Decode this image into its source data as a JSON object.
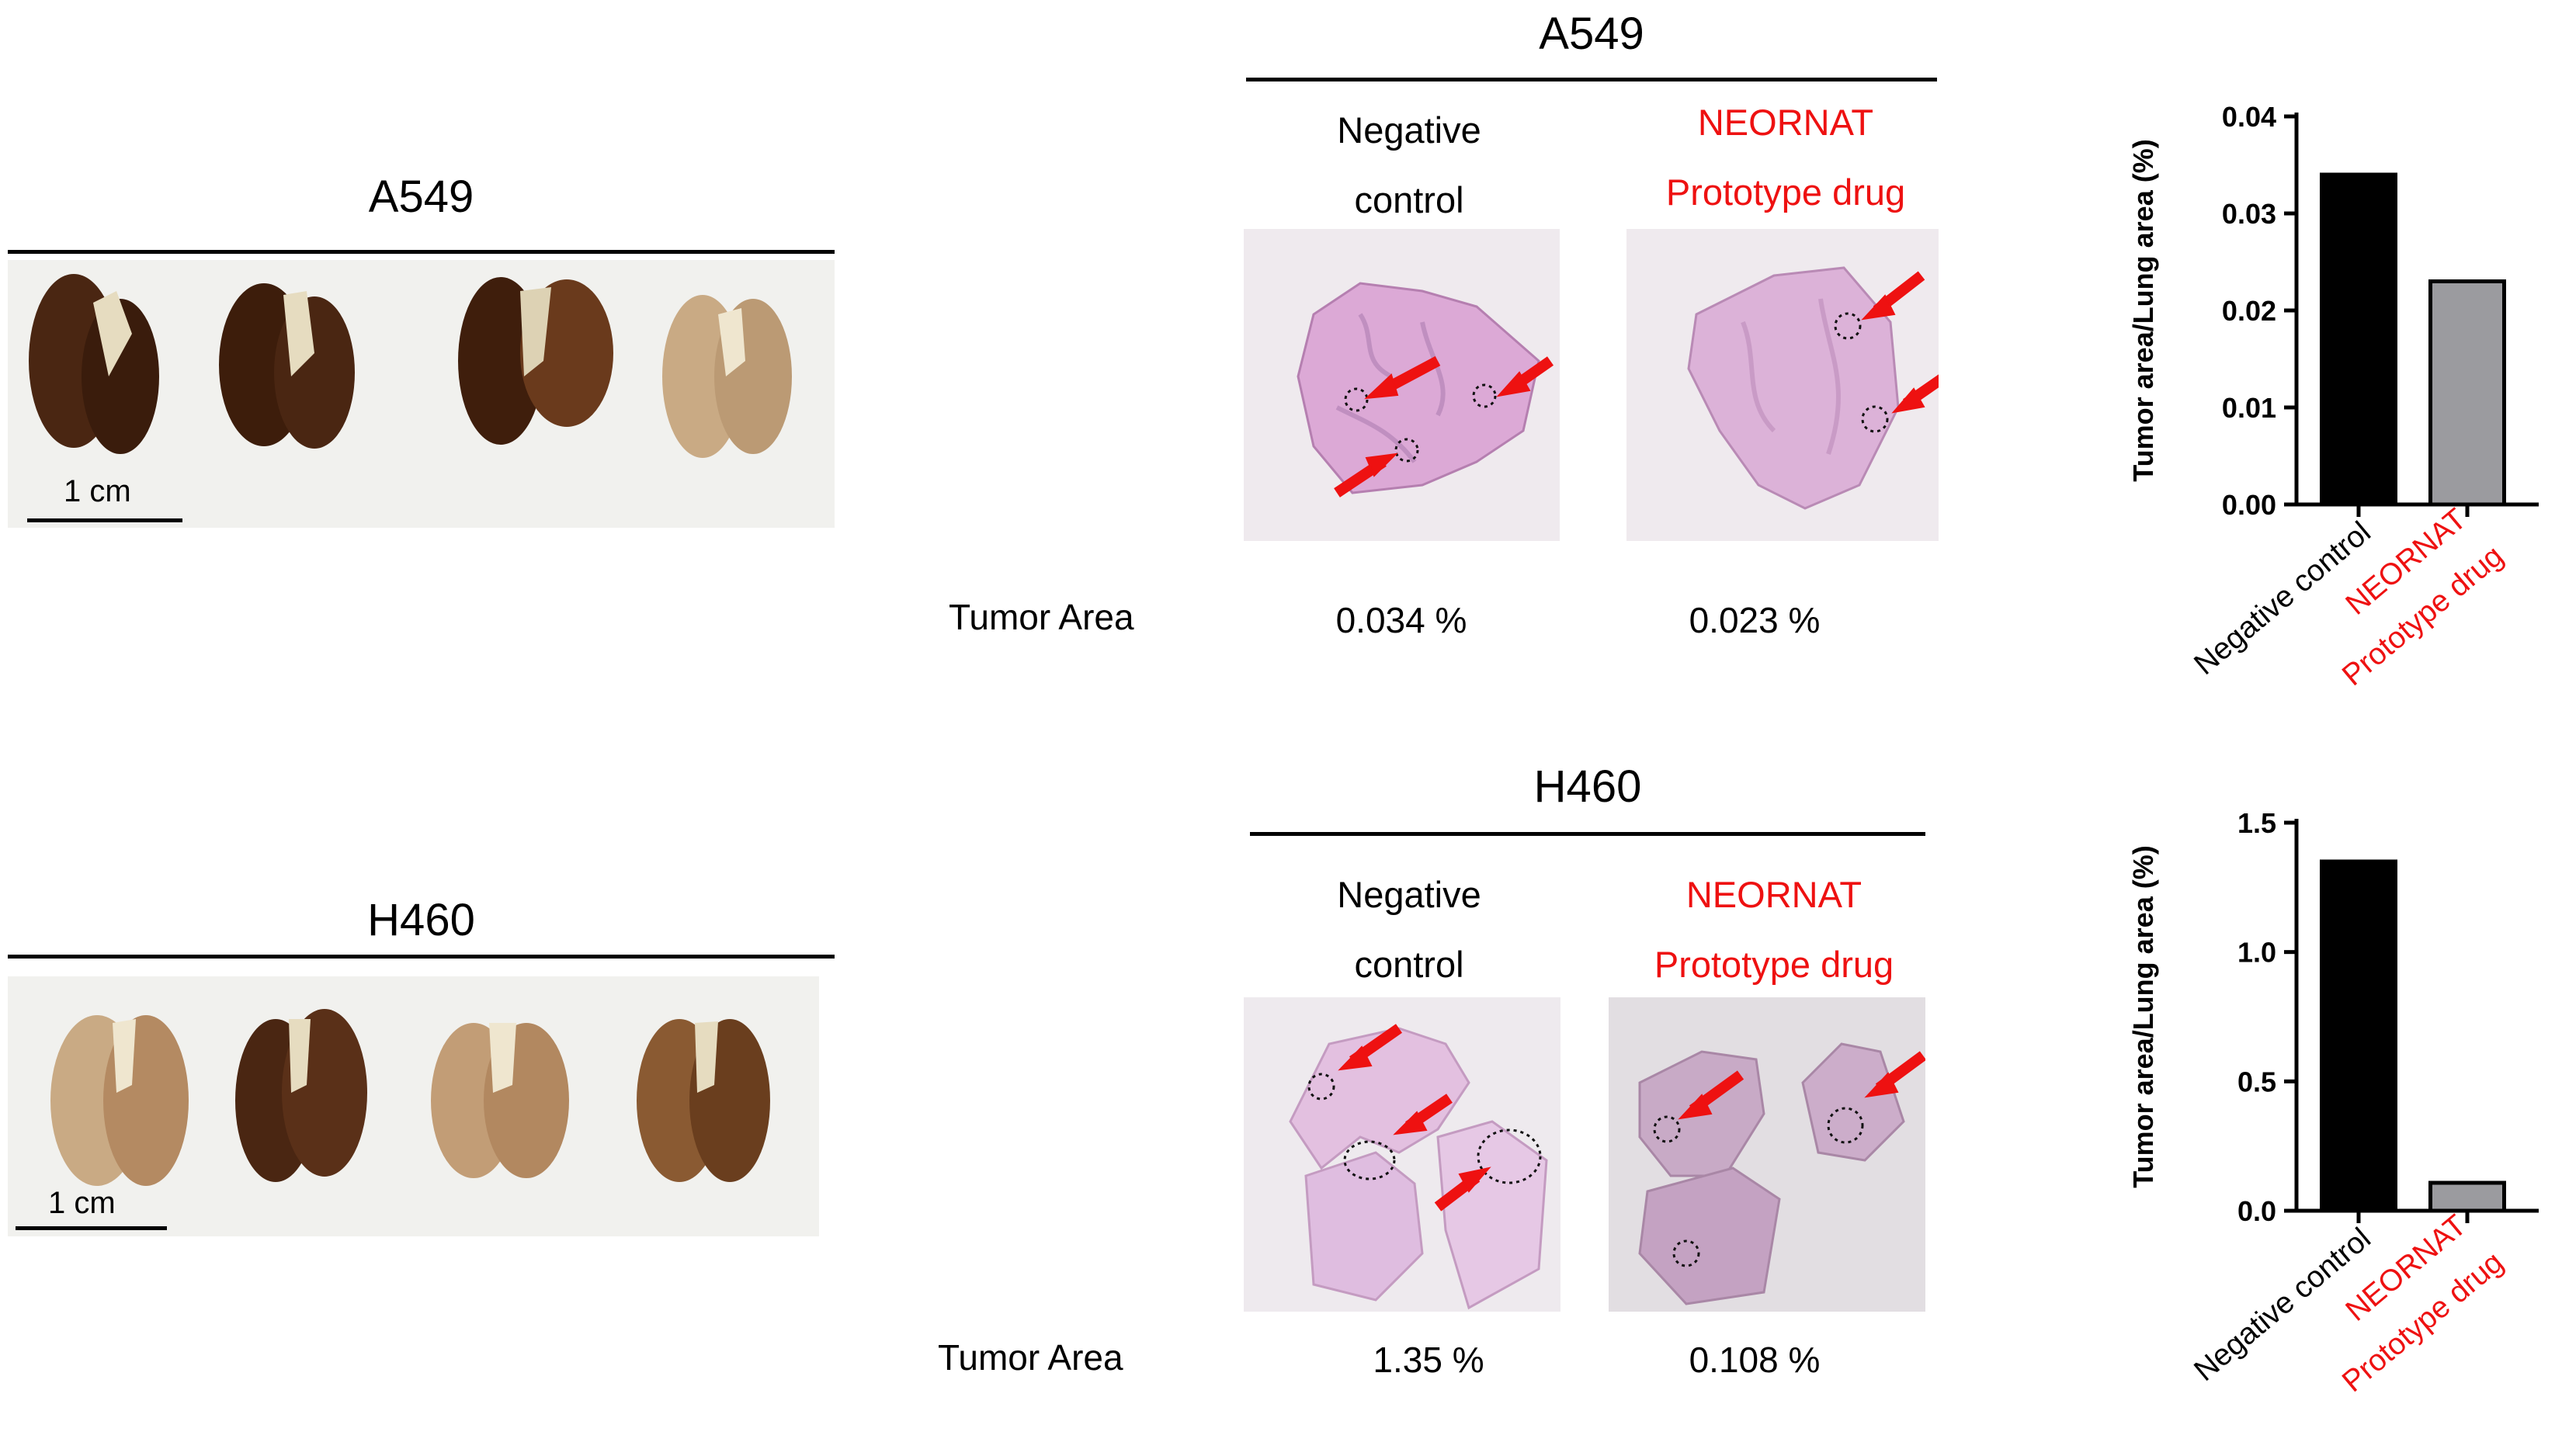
{
  "panels": {
    "a549": {
      "photo_title": "A549",
      "scale_label": "1 cm",
      "histo_title": "A549",
      "col1": [
        "Negative",
        "control"
      ],
      "col2": [
        "NEORNAT",
        "Prototype drug"
      ],
      "tumor_area_label": "Tumor Area",
      "tumor_area_values": [
        "0.034 %",
        "0.023 %"
      ]
    },
    "h460": {
      "photo_title": "H460",
      "scale_label": "1 cm",
      "histo_title": "H460",
      "col1": [
        "Negative",
        "control"
      ],
      "col2": [
        "NEORNAT",
        "Prototype drug"
      ],
      "tumor_area_label": "Tumor Area",
      "tumor_area_values": [
        "1.35 %",
        "0.108 %"
      ]
    }
  },
  "colors": {
    "negative_bar": "#000000",
    "drug_bar": "#9b9b9f",
    "accent_red": "#ee1111",
    "lung_dark": "#4a2612",
    "lung_light": "#c9aa84",
    "tissue_pink": "#dca9d6"
  },
  "chart_data": [
    {
      "type": "bar",
      "categories": [
        "Negative control",
        "NEORNAT Prototype drug"
      ],
      "category_lines": [
        [
          "Negative control"
        ],
        [
          "NEORNAT",
          "Prototype drug"
        ]
      ],
      "values": [
        0.034,
        0.023
      ],
      "ylabel": "Tumor area/Lung area (%)",
      "ylim": [
        0,
        0.04
      ],
      "yticks": [
        "0.00",
        "0.01",
        "0.02",
        "0.03",
        "0.04"
      ],
      "grid": false
    },
    {
      "type": "bar",
      "categories": [
        "Negative control",
        "NEORNAT Prototype drug"
      ],
      "category_lines": [
        [
          "Negative control"
        ],
        [
          "NEORNAT",
          "Prototype drug"
        ]
      ],
      "values": [
        1.35,
        0.108
      ],
      "ylabel": "Tumor area/Lung area (%)",
      "ylim": [
        0,
        1.5
      ],
      "yticks": [
        "0.0",
        "0.5",
        "1.0",
        "1.5"
      ],
      "grid": false
    }
  ]
}
